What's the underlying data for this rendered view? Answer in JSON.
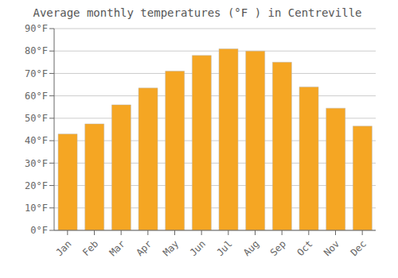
{
  "chart_data": {
    "type": "bar",
    "title": "Average monthly temperatures (°F ) in Centreville",
    "categories": [
      "Jan",
      "Feb",
      "Mar",
      "Apr",
      "May",
      "Jun",
      "Jul",
      "Aug",
      "Sep",
      "Oct",
      "Nov",
      "Dec"
    ],
    "values": [
      43,
      47.5,
      56,
      63.5,
      71,
      78,
      81,
      80,
      75,
      64,
      54.5,
      46.5
    ],
    "color": "#F5A623",
    "ylim": [
      0,
      90
    ],
    "yticks": [
      {
        "value": 0,
        "label": "0°F"
      },
      {
        "value": 10,
        "label": "10°F"
      },
      {
        "value": 20,
        "label": "20°F"
      },
      {
        "value": 30,
        "label": "30°F"
      },
      {
        "value": 40,
        "label": "40°F"
      },
      {
        "value": 50,
        "label": "50°F"
      },
      {
        "value": 60,
        "label": "60°F"
      },
      {
        "value": 70,
        "label": "70°F"
      },
      {
        "value": 80,
        "label": "80°F"
      },
      {
        "value": 90,
        "label": "90°F"
      }
    ],
    "grid": true
  }
}
